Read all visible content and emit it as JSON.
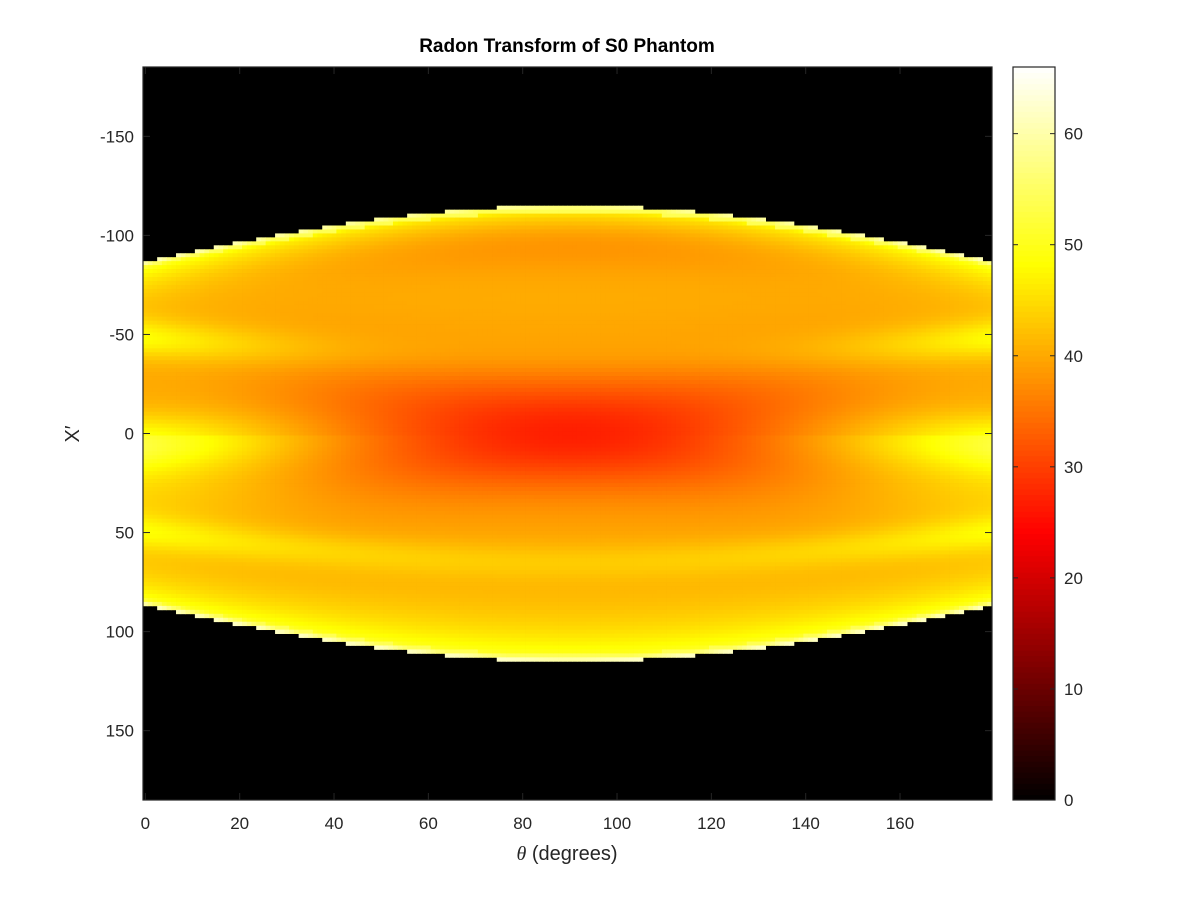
{
  "chart_data": {
    "type": "heatmap",
    "title": "Radon Transform of S0 Phantom",
    "xlabel_symbol": "θ",
    "xlabel_text": " (degrees)",
    "ylabel": "X′",
    "x_range": [
      0,
      179
    ],
    "y_range": [
      -185,
      185
    ],
    "y_direction": "top-to-bottom",
    "x_ticks": [
      0,
      20,
      40,
      60,
      80,
      100,
      120,
      140,
      160
    ],
    "y_ticks": [
      -150,
      -100,
      -50,
      0,
      50,
      100,
      150
    ],
    "color_range": [
      0,
      66
    ],
    "colorbar_ticks": [
      0,
      10,
      20,
      30,
      40,
      50,
      60
    ],
    "colormap": "hot",
    "colorbar_placement": "right",
    "description_model": {
      "support_halfwidth_at_0deg": 87,
      "support_halfwidth_at_90deg": 115,
      "inner_band_at_0deg": [
        -48,
        -5,
        50
      ],
      "center_min_value_at_90deg": 22,
      "edge_peak_value": 58,
      "background_value": 0
    }
  }
}
